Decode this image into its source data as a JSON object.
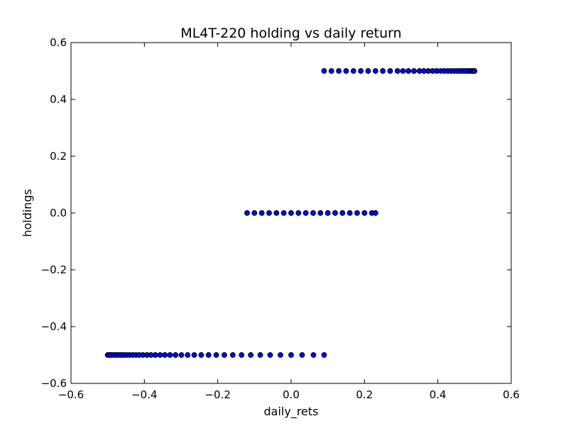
{
  "chart_data": {
    "type": "scatter",
    "title": "ML4T-220 holding vs daily return",
    "xlabel": "daily_rets",
    "ylabel": "holdings",
    "xlim": [
      -0.6,
      0.6
    ],
    "ylim": [
      -0.6,
      0.6
    ],
    "xticks": [
      -0.6,
      -0.4,
      -0.2,
      0.0,
      0.2,
      0.4,
      0.6
    ],
    "yticks": [
      -0.6,
      -0.4,
      -0.2,
      0.0,
      0.2,
      0.4,
      0.6
    ],
    "xtick_labels": [
      "−0.6",
      "−0.4",
      "−0.2",
      "0.0",
      "0.2",
      "0.4",
      "0.6"
    ],
    "ytick_labels": [
      "−0.6",
      "−0.4",
      "−0.2",
      "0.0",
      "0.2",
      "0.4",
      "0.6"
    ],
    "grid": false,
    "marker_color": "#0000ff",
    "marker_edge": "#000000",
    "series": [
      {
        "y": -0.5,
        "x": [
          -0.5,
          -0.495,
          -0.49,
          -0.484,
          -0.478,
          -0.471,
          -0.464,
          -0.457,
          -0.449,
          -0.441,
          -0.432,
          -0.423,
          -0.414,
          -0.404,
          -0.393,
          -0.382,
          -0.37,
          -0.357,
          -0.344,
          -0.33,
          -0.315,
          -0.299,
          -0.282,
          -0.264,
          -0.245,
          -0.225,
          -0.204,
          -0.182,
          -0.159,
          -0.135,
          -0.11,
          -0.084,
          -0.057,
          -0.029,
          0.0,
          0.03,
          0.061,
          0.09
        ]
      },
      {
        "y": 0.0,
        "x": [
          -0.12,
          -0.1,
          -0.08,
          -0.06,
          -0.04,
          -0.02,
          0.0,
          0.02,
          0.04,
          0.06,
          0.08,
          0.1,
          0.12,
          0.14,
          0.16,
          0.18,
          0.2,
          0.22,
          0.23
        ]
      },
      {
        "y": 0.5,
        "x": [
          0.09,
          0.11,
          0.13,
          0.15,
          0.17,
          0.19,
          0.21,
          0.23,
          0.25,
          0.27,
          0.29,
          0.305,
          0.32,
          0.335,
          0.35,
          0.362,
          0.374,
          0.386,
          0.397,
          0.408,
          0.418,
          0.428,
          0.437,
          0.446,
          0.454,
          0.462,
          0.469,
          0.476,
          0.482,
          0.488,
          0.493,
          0.497,
          0.5
        ]
      }
    ]
  }
}
